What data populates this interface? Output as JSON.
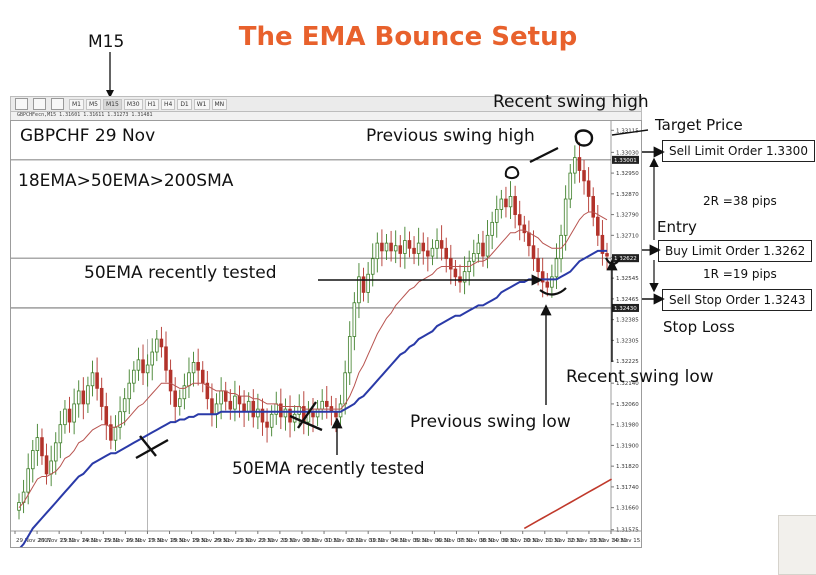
{
  "title": "The EMA Bounce Setup",
  "timeframe_label": "M15",
  "toolbar": {
    "buttons": [
      "M1",
      "M5",
      "M15",
      "M30",
      "H1",
      "H4",
      "D1",
      "W1",
      "MN"
    ],
    "active": "M15"
  },
  "window_caption": "GBPCHFecn,M15  1.31601 1.31611 1.31273 1.31481",
  "symbol_label": "GBPCHF 29 Nov",
  "ema_condition": "18EMA>50EMA>200SMA",
  "annotations": {
    "recent_swing_high": "Recent swing high",
    "previous_swing_high": "Previous swing high",
    "target_price": "Target Price",
    "sell_limit": "Sell Limit Order 1.3300",
    "reward": "2R =38 pips",
    "entry": "Entry",
    "buy_limit": "Buy Limit Order 1.3262",
    "risk": "1R =19 pips",
    "sell_stop": "Sell Stop Order 1.3243",
    "stop_loss": "Stop Loss",
    "ema_tested_upper": "50EMA recently tested",
    "ema_tested_lower": "50EMA recently tested",
    "recent_swing_low": "Recent swing low",
    "previous_swing_low": "Previous swing low"
  },
  "colors": {
    "title": "#e8612c",
    "bull": "#3f7f2a",
    "bear": "#b2332b",
    "ema18": "#b85450",
    "ema50": "#2a3aa8",
    "sma200": "#c0392b",
    "level_line": "#555555"
  },
  "chart_data": {
    "type": "candlestick",
    "symbol": "GBPCHF",
    "timeframe": "M15",
    "ylim": [
      1.3157,
      1.3312
    ],
    "y_ticks": [
      "1.33115",
      "1.33030",
      "1.32950",
      "1.32870",
      "1.32790",
      "1.32710",
      "1.32625",
      "1.32545",
      "1.32465",
      "1.32385",
      "1.32305",
      "1.32225",
      "1.32140",
      "1.32060",
      "1.31980",
      "1.31900",
      "1.31820",
      "1.31740",
      "1.31660",
      "1.31575"
    ],
    "x_ticks": [
      "29 Nov 2017",
      "29 Nov 13:30",
      "29 Nov 14:30",
      "29 Nov 15:30",
      "29 Nov 16:30",
      "29 Nov 17:30",
      "29 Nov 18:30",
      "29 Nov 19:30",
      "29 Nov 20:30",
      "29 Nov 21:30",
      "29 Nov 22:30",
      "29 Nov 23:30",
      "30 Nov 00:30",
      "30 Nov 01:30",
      "30 Nov 02:30",
      "30 Nov 03:30",
      "30 Nov 04:30",
      "30 Nov 05:30",
      "30 Nov 06:30",
      "30 Nov 07:30",
      "30 Nov 08:30",
      "30 Nov 09:30",
      "30 Nov 10:30",
      "30 Nov 11:30",
      "30 Nov 12:30",
      "30 Nov 13:30",
      "30 Nov 14:30",
      "30 Nov 15:30"
    ],
    "price_tags": [
      "1.33001",
      "1.32622",
      "1.32430"
    ],
    "levels": [
      {
        "name": "sell_limit",
        "price": 1.33001
      },
      {
        "name": "buy_limit",
        "price": 1.32622
      },
      {
        "name": "sell_stop",
        "price": 1.3243
      }
    ],
    "closes": [
      1.3168,
      1.3172,
      1.3181,
      1.3188,
      1.3193,
      1.3186,
      1.3179,
      1.3184,
      1.3191,
      1.3198,
      1.3204,
      1.3199,
      1.3206,
      1.3211,
      1.3206,
      1.3213,
      1.3218,
      1.3212,
      1.3205,
      1.3198,
      1.3192,
      1.3197,
      1.3203,
      1.3208,
      1.3214,
      1.3219,
      1.3223,
      1.3218,
      1.3221,
      1.3226,
      1.3231,
      1.3228,
      1.3219,
      1.3211,
      1.3205,
      1.3208,
      1.3213,
      1.3218,
      1.3222,
      1.3219,
      1.3214,
      1.3208,
      1.3202,
      1.3206,
      1.3211,
      1.3207,
      1.3204,
      1.3209,
      1.3206,
      1.3203,
      1.3207,
      1.3201,
      1.3204,
      1.3199,
      1.3197,
      1.3202,
      1.3206,
      1.3201,
      1.3204,
      1.3199,
      1.3202,
      1.3205,
      1.3199,
      1.3203,
      1.3201,
      1.3204,
      1.3207,
      1.3205,
      1.3203,
      1.3201,
      1.3206,
      1.3218,
      1.3232,
      1.3245,
      1.3255,
      1.3249,
      1.3256,
      1.3262,
      1.3268,
      1.3265,
      1.3268,
      1.3265,
      1.3267,
      1.3264,
      1.3269,
      1.3266,
      1.3264,
      1.3268,
      1.3265,
      1.3263,
      1.3266,
      1.3269,
      1.3266,
      1.3262,
      1.3258,
      1.3255,
      1.3253,
      1.3257,
      1.3261,
      1.3264,
      1.3268,
      1.3263,
      1.3271,
      1.3276,
      1.3281,
      1.3285,
      1.3282,
      1.3286,
      1.3279,
      1.3275,
      1.3272,
      1.3267,
      1.3262,
      1.3257,
      1.3253,
      1.3251,
      1.3255,
      1.3262,
      1.3271,
      1.3285,
      1.3295,
      1.3301,
      1.3296,
      1.3292,
      1.3286,
      1.3278,
      1.3271,
      1.3264,
      1.3263
    ],
    "ema18": [
      1.3166,
      1.3168,
      1.3171,
      1.3174,
      1.3177,
      1.3178,
      1.3178,
      1.3179,
      1.318,
      1.3182,
      1.3185,
      1.3186,
      1.3188,
      1.3191,
      1.3192,
      1.3194,
      1.3196,
      1.3197,
      1.3198,
      1.3198,
      1.3197,
      1.3197,
      1.3198,
      1.3199,
      1.3201,
      1.3203,
      1.3205,
      1.3206,
      1.3208,
      1.321,
      1.3212,
      1.3214,
      1.3214,
      1.3214,
      1.3213,
      1.3212,
      1.3212,
      1.3213,
      1.3214,
      1.3214,
      1.3214,
      1.3213,
      1.3212,
      1.3211,
      1.3211,
      1.3211,
      1.321,
      1.321,
      1.3209,
      1.3209,
      1.3209,
      1.3208,
      1.3208,
      1.3207,
      1.3206,
      1.3206,
      1.3206,
      1.3205,
      1.3205,
      1.3205,
      1.3205,
      1.3205,
      1.3204,
      1.3204,
      1.3204,
      1.3204,
      1.3204,
      1.3204,
      1.3204,
      1.3204,
      1.3204,
      1.3206,
      1.3209,
      1.3213,
      1.3218,
      1.3221,
      1.3225,
      1.3229,
      1.3233,
      1.3236,
      1.3239,
      1.3241,
      1.3244,
      1.3246,
      1.3248,
      1.325,
      1.3251,
      1.3253,
      1.3254,
      1.3255,
      1.3256,
      1.3258,
      1.3259,
      1.3259,
      1.3259,
      1.3259,
      1.3259,
      1.3259,
      1.3259,
      1.326,
      1.3261,
      1.3261,
      1.3262,
      1.3264,
      1.3266,
      1.3268,
      1.327,
      1.3272,
      1.3272,
      1.3273,
      1.3273,
      1.3272,
      1.3271,
      1.327,
      1.3268,
      1.3267,
      1.3266,
      1.3266,
      1.3266,
      1.3268,
      1.3271,
      1.3274,
      1.3277,
      1.3279,
      1.328,
      1.328,
      1.3279,
      1.3278,
      1.3277
    ],
    "ema50": [
      1.315,
      1.3152,
      1.3155,
      1.3158,
      1.316,
      1.3162,
      1.3164,
      1.3166,
      1.3168,
      1.317,
      1.3172,
      1.3174,
      1.3176,
      1.3178,
      1.3179,
      1.3181,
      1.3183,
      1.3184,
      1.3185,
      1.3186,
      1.3187,
      1.3187,
      1.3188,
      1.3189,
      1.319,
      1.3191,
      1.3192,
      1.3193,
      1.3194,
      1.3195,
      1.3196,
      1.3197,
      1.3198,
      1.3199,
      1.3199,
      1.32,
      1.32,
      1.3201,
      1.3201,
      1.3202,
      1.3202,
      1.3202,
      1.3202,
      1.3202,
      1.3203,
      1.3203,
      1.3203,
      1.3203,
      1.3203,
      1.3203,
      1.3203,
      1.3203,
      1.3203,
      1.3203,
      1.3203,
      1.3203,
      1.3203,
      1.3203,
      1.3203,
      1.3203,
      1.3203,
      1.3203,
      1.3203,
      1.3203,
      1.3203,
      1.3203,
      1.3203,
      1.3203,
      1.3203,
      1.3203,
      1.3203,
      1.3204,
      1.3205,
      1.3206,
      1.3208,
      1.3209,
      1.3211,
      1.3213,
      1.3215,
      1.3217,
      1.3219,
      1.3221,
      1.3223,
      1.3225,
      1.3226,
      1.3228,
      1.3229,
      1.3231,
      1.3232,
      1.3233,
      1.3234,
      1.3236,
      1.3237,
      1.3238,
      1.3239,
      1.324,
      1.324,
      1.3241,
      1.3242,
      1.3243,
      1.3244,
      1.3244,
      1.3245,
      1.3246,
      1.3247,
      1.3249,
      1.325,
      1.3251,
      1.3252,
      1.3253,
      1.3253,
      1.3254,
      1.3254,
      1.3254,
      1.3254,
      1.3254,
      1.3254,
      1.3254,
      1.3255,
      1.3256,
      1.3257,
      1.3259,
      1.3261,
      1.3262,
      1.3263,
      1.3264,
      1.3265,
      1.3265,
      1.3265
    ],
    "sma200": {
      "from_index": 110,
      "values": [
        1.3158,
        1.3159,
        1.316,
        1.3161,
        1.3162,
        1.3163,
        1.3164,
        1.3165,
        1.3166,
        1.3167,
        1.3168,
        1.3169,
        1.317,
        1.3171,
        1.3172,
        1.3173,
        1.3174,
        1.3175,
        1.3176,
        1.3177
      ]
    }
  }
}
